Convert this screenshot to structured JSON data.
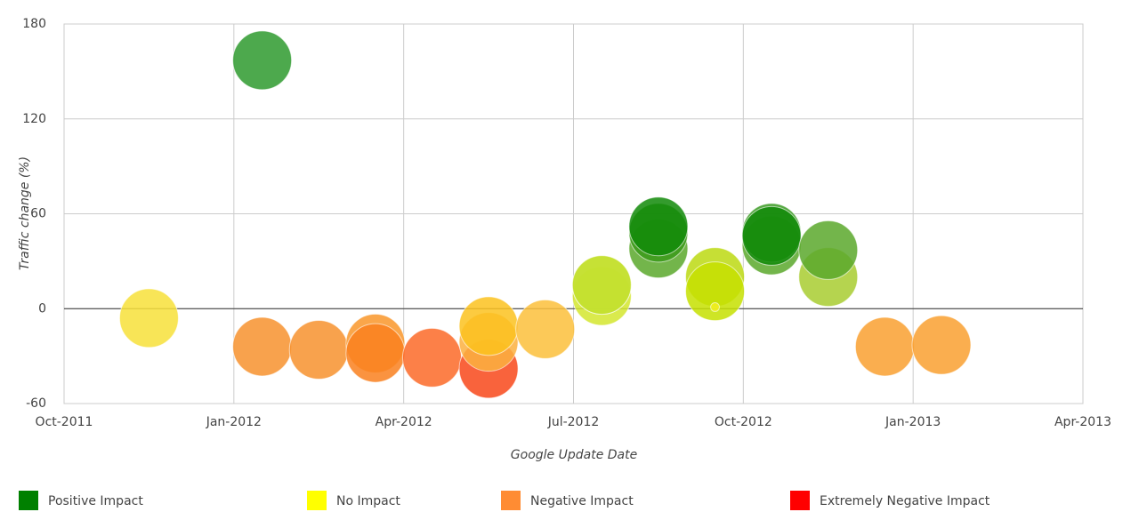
{
  "chart_data": {
    "type": "bubble",
    "x_label": "Google Update Date",
    "y_label": "Traffic change (%)",
    "x": [
      "2011-11",
      "2012-01",
      "2012-01",
      "2012-02",
      "2012-03",
      "2012-03",
      "2012-04",
      "2012-05",
      "2012-05",
      "2012-05",
      "2012-06",
      "2012-07",
      "2012-07",
      "2012-07",
      "2012-08",
      "2012-08",
      "2012-08",
      "2012-10",
      "2012-10",
      "2012-10",
      "2012-09",
      "2012-09",
      "2012-09",
      "2012-11",
      "2012-11",
      "2012-12",
      "2013-01"
    ],
    "values": [
      -6,
      -24,
      157,
      -26,
      -22,
      -28,
      -31,
      -38,
      -21,
      -11,
      -13,
      8,
      15,
      15,
      38,
      48,
      52,
      40,
      48,
      46,
      20,
      11,
      1,
      20,
      37,
      -24,
      -23
    ],
    "sizes": [
      10,
      10,
      10,
      10,
      10,
      10,
      10,
      10,
      10,
      10,
      10,
      10,
      10,
      10,
      10,
      10,
      10,
      10,
      10,
      10,
      10,
      10,
      1.5,
      10,
      10,
      10,
      10
    ],
    "colors": [
      "#f7e03a",
      "#f7922e",
      "#2e9a2e",
      "#f7922e",
      "#f9962a",
      "#f9801e",
      "#fb6a28",
      "#f8481a",
      "#fbb040",
      "#fcc21e",
      "#fbbf3b",
      "#d4e62e",
      "#c4e030",
      "#c4e030",
      "#5aa82c",
      "#3b9a1a",
      "#118a08",
      "#5aa82c",
      "#3a9a22",
      "#118a08",
      "#bcd912",
      "#c6e000",
      "#f2f020",
      "#a8cc30",
      "#5aa82c",
      "#f9a030",
      "#f9a030"
    ],
    "xlim": [
      "2011-10",
      "2013-04"
    ],
    "xticks": [
      {
        "value": "2011-10",
        "label": "Oct-2011"
      },
      {
        "value": "2012-01",
        "label": "Jan-2012"
      },
      {
        "value": "2012-04",
        "label": "Apr-2012"
      },
      {
        "value": "2012-07",
        "label": "Jul-2012"
      },
      {
        "value": "2012-10",
        "label": "Oct-2012"
      },
      {
        "value": "2013-01",
        "label": "Jan-2013"
      },
      {
        "value": "2013-04",
        "label": "Apr-2013"
      }
    ],
    "ylim": [
      -60,
      180
    ],
    "yticks": [
      -60,
      0,
      60,
      120,
      180
    ],
    "grid": true,
    "legend": [
      {
        "name": "Positive Impact",
        "color": "#008000"
      },
      {
        "name": "No Impact",
        "color": "#ffff00"
      },
      {
        "name": "Negative Impact",
        "color": "#ff8c33"
      },
      {
        "name": "Extremely Negative Impact",
        "color": "#ff0000"
      }
    ]
  }
}
